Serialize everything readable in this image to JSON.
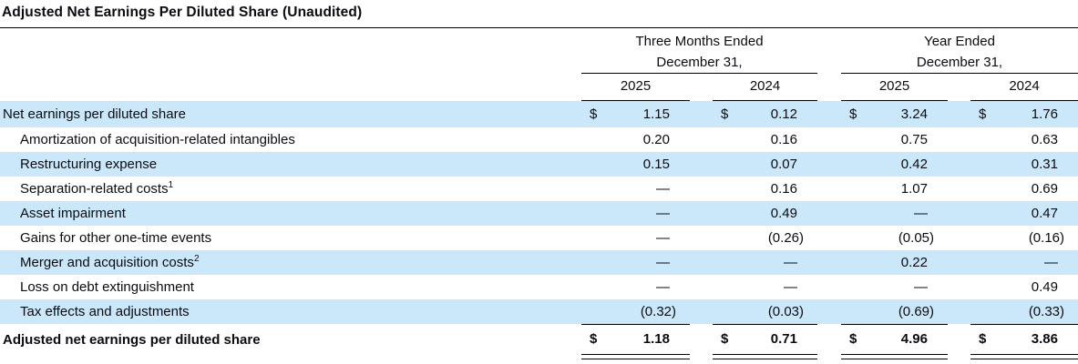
{
  "title": "Adjusted Net Earnings Per Diluted Share (Unaudited)",
  "table": {
    "groups": [
      {
        "line1": "Three Months Ended",
        "line2": "December 31,"
      },
      {
        "line1": "Year Ended",
        "line2": "December 31,"
      }
    ],
    "years": [
      "2025",
      "2024",
      "2025",
      "2024"
    ],
    "rows": [
      {
        "label": "Net earnings per diluted share",
        "currency": "$",
        "values": [
          "1.15",
          "0.12",
          "3.24",
          "1.76"
        ],
        "highlight": true,
        "indent": false,
        "bold": false
      },
      {
        "label": "Amortization of acquisition-related intangibles",
        "values": [
          "0.20",
          "0.16",
          "0.75",
          "0.63"
        ],
        "highlight": false,
        "indent": true,
        "bold": false
      },
      {
        "label": "Restructuring expense",
        "values": [
          "0.15",
          "0.07",
          "0.42",
          "0.31"
        ],
        "highlight": true,
        "indent": true,
        "bold": false
      },
      {
        "label": "Separation-related costs",
        "footnote": "1",
        "values": [
          "—",
          "0.16",
          "1.07",
          "0.69"
        ],
        "highlight": false,
        "indent": true,
        "bold": false
      },
      {
        "label": "Asset impairment",
        "values": [
          "—",
          "0.49",
          "—",
          "0.47"
        ],
        "highlight": true,
        "indent": true,
        "bold": false
      },
      {
        "label": "Gains for other one-time events",
        "values": [
          "—",
          "(0.26)",
          "(0.05)",
          "(0.16)"
        ],
        "highlight": false,
        "indent": true,
        "bold": false
      },
      {
        "label": "Merger and acquisition costs",
        "footnote": "2",
        "values": [
          "—",
          "—",
          "0.22",
          "—"
        ],
        "highlight": true,
        "indent": true,
        "bold": false
      },
      {
        "label": "Loss on debt extinguishment",
        "values": [
          "—",
          "—",
          "—",
          "0.49"
        ],
        "highlight": false,
        "indent": true,
        "bold": false
      },
      {
        "label": "Tax effects and adjustments",
        "values": [
          "(0.32)",
          "(0.03)",
          "(0.69)",
          "(0.33)"
        ],
        "highlight": true,
        "indent": true,
        "bold": false
      },
      {
        "label": "Adjusted net earnings per diluted share",
        "currency": "$",
        "values": [
          "1.18",
          "0.71",
          "4.96",
          "3.86"
        ],
        "highlight": false,
        "indent": false,
        "bold": true,
        "total": true
      }
    ]
  },
  "colors": {
    "row_highlight": "#cae8fa",
    "rule": "#000000",
    "text": "#0b0b11"
  }
}
